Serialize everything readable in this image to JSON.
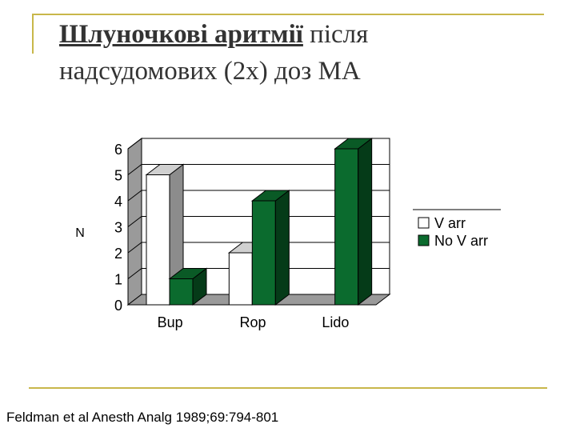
{
  "slide": {
    "title_emphasis": "Шлуночкові аритмії",
    "title_rest_line1": " після",
    "title_line2": "надсудомових (2х) доз МА",
    "citation": "Feldman et al Anesth Analg 1989;69:794-801"
  },
  "chart_data": {
    "type": "bar",
    "categories": [
      "Bup",
      "Rop",
      "Lido"
    ],
    "series": [
      {
        "name": "V arr",
        "values": [
          5,
          2,
          0
        ],
        "color": "#ffffff"
      },
      {
        "name": "No V arr",
        "values": [
          1,
          4,
          6
        ],
        "color": "#0b6b2e"
      }
    ],
    "ylabel": "N",
    "ylim": [
      0,
      6
    ],
    "yticks": [
      0,
      1,
      2,
      3,
      4,
      5,
      6
    ],
    "grid": true,
    "legend_position": "right",
    "style": "3d-bar"
  }
}
